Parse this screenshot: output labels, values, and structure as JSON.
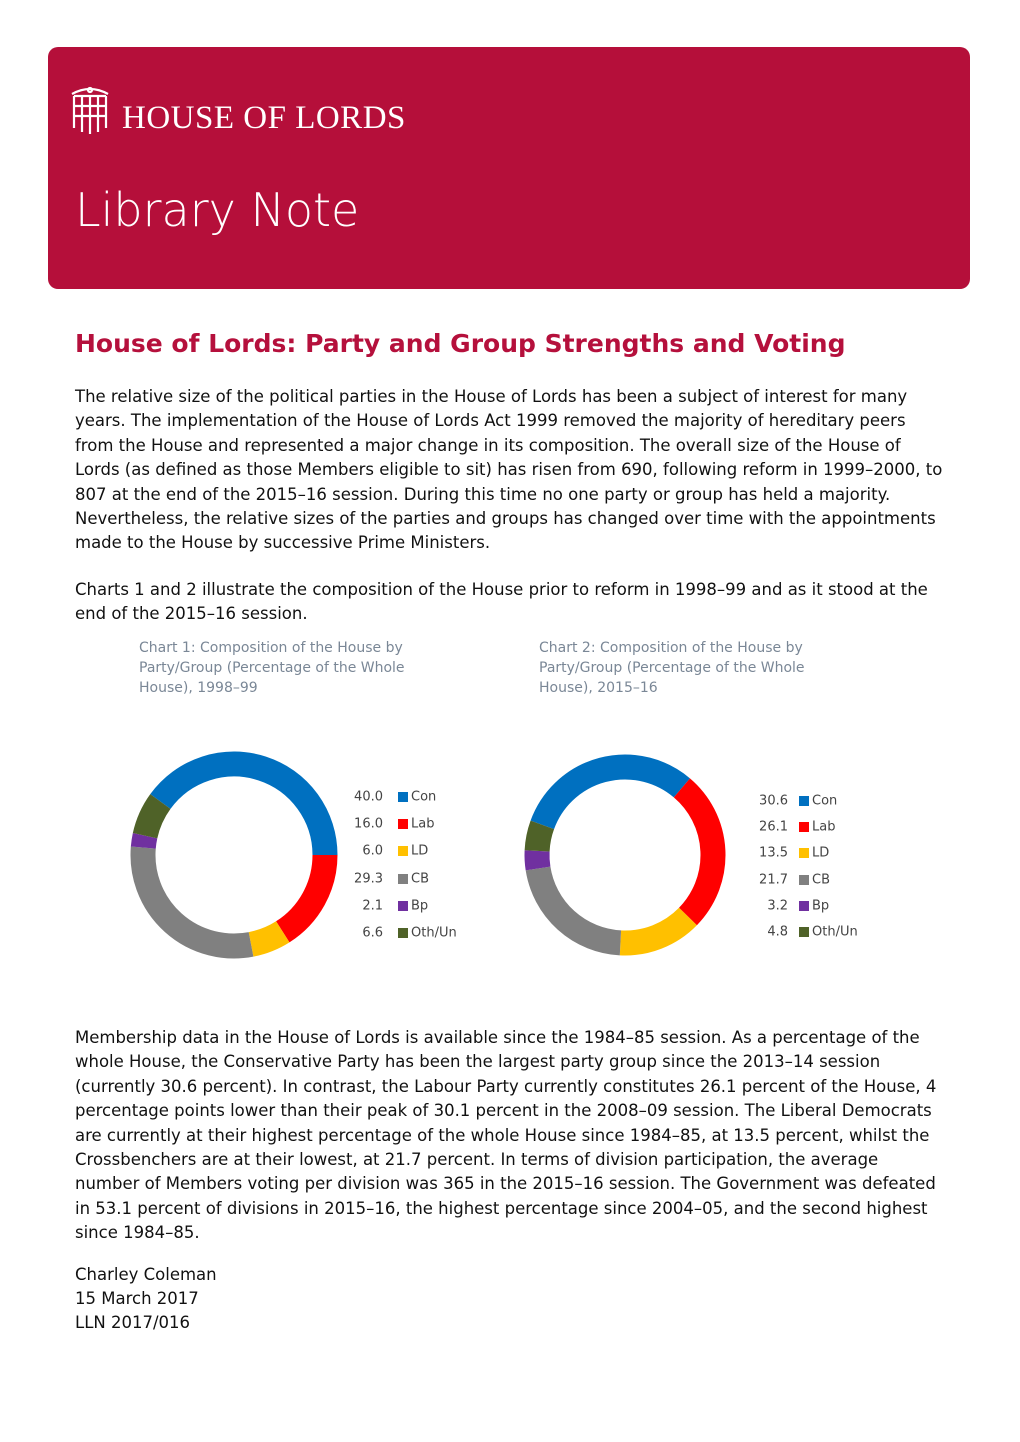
{
  "header": {
    "organisation": "HOUSE OF LORDS",
    "series": "Library Note"
  },
  "title": "House of Lords: Party and Group Strengths and Voting",
  "paragraphs": [
    "The relative size of the political parties in the House of Lords has been a subject of interest for many years. The implementation of the House of Lords Act 1999 removed the majority of hereditary peers from the House and represented a major change in its composition. The overall size of the House of Lords (as defined as those Members eligible to sit) has risen from 690, following reform in 1999–2000, to 807 at the end of the 2015–16 session. During this time no one party or group has held a majority. Nevertheless, the relative sizes of the parties and groups has changed over time with the appointments made to the House by successive Prime Ministers.",
    "Charts 1 and 2 illustrate the composition of the House prior to reform in 1998–99 and as it stood at the end of the 2015–16 session.",
    "Membership data in the House of Lords is available since the 1984–85 session. As a percentage of the whole House, the Conservative Party has been the largest party group since the 2013–14 session (currently 30.6 percent). In contrast, the Labour Party currently constitutes 26.1 percent of the House, 4 percentage points lower than their peak of 30.1 percent in the 2008–09 session. The Liberal Democrats are currently at their highest percentage of the whole House since 1984–85, at 13.5 percent, whilst the Crossbenchers are at their lowest, at 21.7 percent. In terms of division participation, the average number of Members voting per division was 365 in the 2015–16 session. The Government was defeated in 53.1 percent of divisions in 2015–16, the highest percentage since 2004–05, and the second highest since 1984–85."
  ],
  "chart_data": [
    {
      "type": "donut",
      "title": "Chart 1: Composition of the House by Party/Group (Percentage of the Whole House), 1998–99",
      "categories": [
        "Con",
        "Lab",
        "LD",
        "CB",
        "Bp",
        "Oth/Un"
      ],
      "values": [
        40.0,
        16.0,
        6.0,
        29.3,
        2.1,
        6.6
      ],
      "value_labels": [
        "40.0",
        "16.0",
        "6.0",
        "29.3",
        "2.1",
        "6.6"
      ],
      "colors": [
        "#0070c0",
        "#ff0000",
        "#ffc000",
        "#808080",
        "#7030a0",
        "#4f6228"
      ]
    },
    {
      "type": "donut",
      "title": "Chart 2: Composition of the House by Party/Group (Percentage of the Whole House), 2015–16",
      "categories": [
        "Con",
        "Lab",
        "LD",
        "CB",
        "Bp",
        "Oth/Un"
      ],
      "values": [
        30.6,
        26.1,
        13.5,
        21.7,
        3.2,
        4.8
      ],
      "colors": [
        "#0070c0",
        "#ff0000",
        "#ffc000",
        "#808080",
        "#7030a0",
        "#4f6228"
      ]
    }
  ],
  "closing": [
    "Charley Coleman",
    "15 March 2017",
    "LLN 2017/016"
  ]
}
